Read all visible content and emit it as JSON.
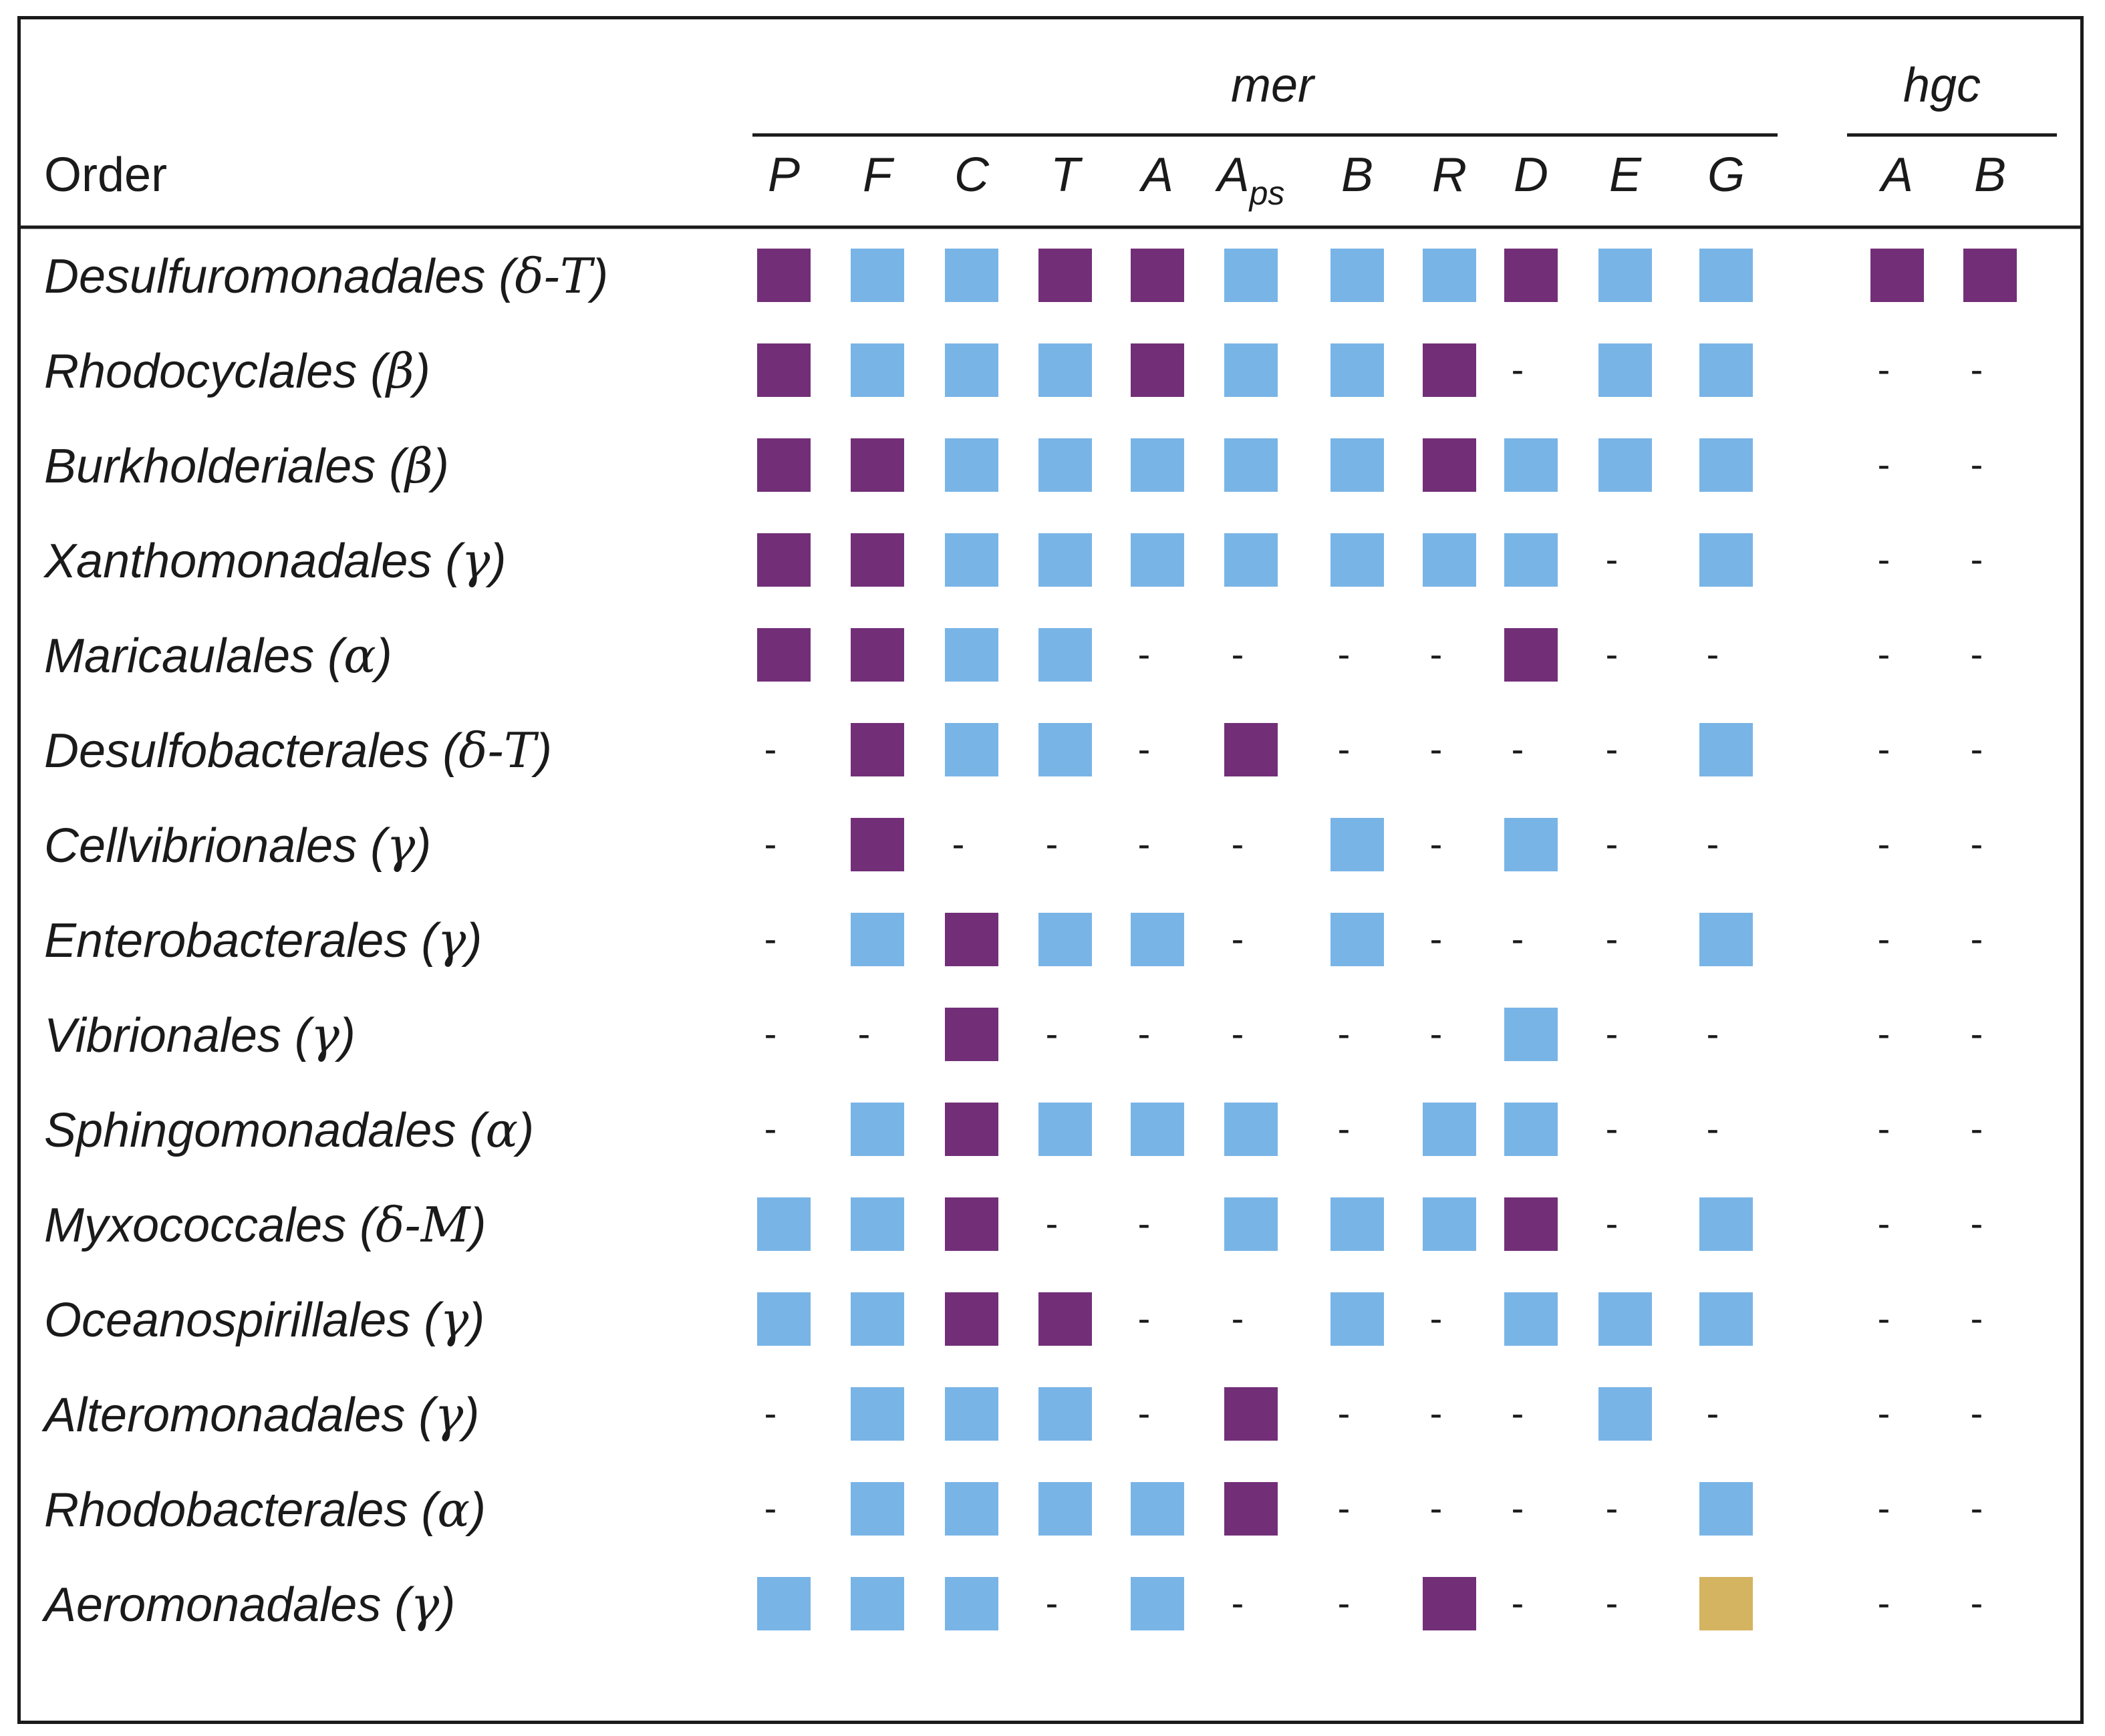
{
  "chart_data": {
    "type": "table",
    "row_header": "Order",
    "groups": [
      {
        "name": "mer",
        "genes": [
          "P",
          "F",
          "C",
          "T",
          "A",
          "Aps",
          "B",
          "R",
          "D",
          "E",
          "G"
        ]
      },
      {
        "name": "hgc",
        "genes": [
          "A",
          "B"
        ]
      }
    ],
    "gene_labels": {
      "mer": [
        {
          "base": "P",
          "sub": ""
        },
        {
          "base": "F",
          "sub": ""
        },
        {
          "base": "C",
          "sub": ""
        },
        {
          "base": "T",
          "sub": ""
        },
        {
          "base": "A",
          "sub": ""
        },
        {
          "base": "A",
          "sub": "ps"
        },
        {
          "base": "B",
          "sub": ""
        },
        {
          "base": "R",
          "sub": ""
        },
        {
          "base": "D",
          "sub": ""
        },
        {
          "base": "E",
          "sub": ""
        },
        {
          "base": "G",
          "sub": ""
        }
      ],
      "hgc": [
        {
          "base": "A",
          "sub": ""
        },
        {
          "base": "B",
          "sub": ""
        }
      ]
    },
    "cell_legend": {
      "p": "purple",
      "b": "blue",
      "g": "gold",
      "-": "absent (dash)"
    },
    "colors": {
      "p": "#722F78",
      "b": "#79B4E6",
      "g": "#D4B361"
    },
    "rows": [
      {
        "name": "Desulfuromonadales",
        "class": "δ-T",
        "mer": [
          "p",
          "b",
          "b",
          "p",
          "p",
          "b",
          "b",
          "b",
          "p",
          "b",
          "b"
        ],
        "hgc": [
          "p",
          "p"
        ]
      },
      {
        "name": "Rhodocyclales",
        "class": "β",
        "mer": [
          "p",
          "b",
          "b",
          "b",
          "p",
          "b",
          "b",
          "p",
          "-",
          "b",
          "b"
        ],
        "hgc": [
          "-",
          "-"
        ]
      },
      {
        "name": "Burkholderiales",
        "class": "β",
        "mer": [
          "p",
          "p",
          "b",
          "b",
          "b",
          "b",
          "b",
          "p",
          "b",
          "b",
          "b"
        ],
        "hgc": [
          "-",
          "-"
        ]
      },
      {
        "name": "Xanthomonadales",
        "class": "γ",
        "mer": [
          "p",
          "p",
          "b",
          "b",
          "b",
          "b",
          "b",
          "b",
          "b",
          "-",
          "b"
        ],
        "hgc": [
          "-",
          "-"
        ]
      },
      {
        "name": "Maricaulales",
        "class": "α",
        "mer": [
          "p",
          "p",
          "b",
          "b",
          "-",
          "-",
          "-",
          "-",
          "p",
          "-",
          "-"
        ],
        "hgc": [
          "-",
          "-"
        ]
      },
      {
        "name": "Desulfobacterales",
        "class": "δ-T",
        "mer": [
          "-",
          "p",
          "b",
          "b",
          "-",
          "p",
          "-",
          "-",
          "-",
          "-",
          "b"
        ],
        "hgc": [
          "-",
          "-"
        ]
      },
      {
        "name": "Cellvibrionales",
        "class": "γ",
        "mer": [
          "-",
          "p",
          "-",
          "-",
          "-",
          "-",
          "b",
          "-",
          "b",
          "-",
          "-"
        ],
        "hgc": [
          "-",
          "-"
        ]
      },
      {
        "name": "Enterobacterales",
        "class": "γ",
        "mer": [
          "-",
          "b",
          "p",
          "b",
          "b",
          "-",
          "b",
          "-",
          "-",
          "-",
          "b"
        ],
        "hgc": [
          "-",
          "-"
        ]
      },
      {
        "name": "Vibrionales",
        "class": "γ",
        "mer": [
          "-",
          "-",
          "p",
          "-",
          "-",
          "-",
          "-",
          "-",
          "b",
          "-",
          "-"
        ],
        "hgc": [
          "-",
          "-"
        ]
      },
      {
        "name": "Sphingomonadales",
        "class": "α",
        "mer": [
          "-",
          "b",
          "p",
          "b",
          "b",
          "b",
          "-",
          "b",
          "b",
          "-",
          "-"
        ],
        "hgc": [
          "-",
          "-"
        ]
      },
      {
        "name": "Myxococcales",
        "class": "δ-M",
        "mer": [
          "b",
          "b",
          "p",
          "-",
          "-",
          "b",
          "b",
          "b",
          "p",
          "-",
          "b"
        ],
        "hgc": [
          "-",
          "-"
        ]
      },
      {
        "name": "Oceanospirillales",
        "class": "γ",
        "mer": [
          "b",
          "b",
          "p",
          "p",
          "-",
          "-",
          "b",
          "-",
          "b",
          "b",
          "b"
        ],
        "hgc": [
          "-",
          "-"
        ]
      },
      {
        "name": "Alteromonadales",
        "class": "γ",
        "mer": [
          "-",
          "b",
          "b",
          "b",
          "-",
          "p",
          "-",
          "-",
          "-",
          "b",
          "-"
        ],
        "hgc": [
          "-",
          "-"
        ]
      },
      {
        "name": "Rhodobacterales",
        "class": "α",
        "mer": [
          "-",
          "b",
          "b",
          "b",
          "b",
          "p",
          "-",
          "-",
          "-",
          "-",
          "b"
        ],
        "hgc": [
          "-",
          "-"
        ]
      },
      {
        "name": "Aeromonadales",
        "class": "γ",
        "mer": [
          "b",
          "b",
          "b",
          "-",
          "b",
          "-",
          "-",
          "p",
          "-",
          "-",
          "g"
        ],
        "hgc": [
          "-",
          "-"
        ]
      }
    ]
  }
}
